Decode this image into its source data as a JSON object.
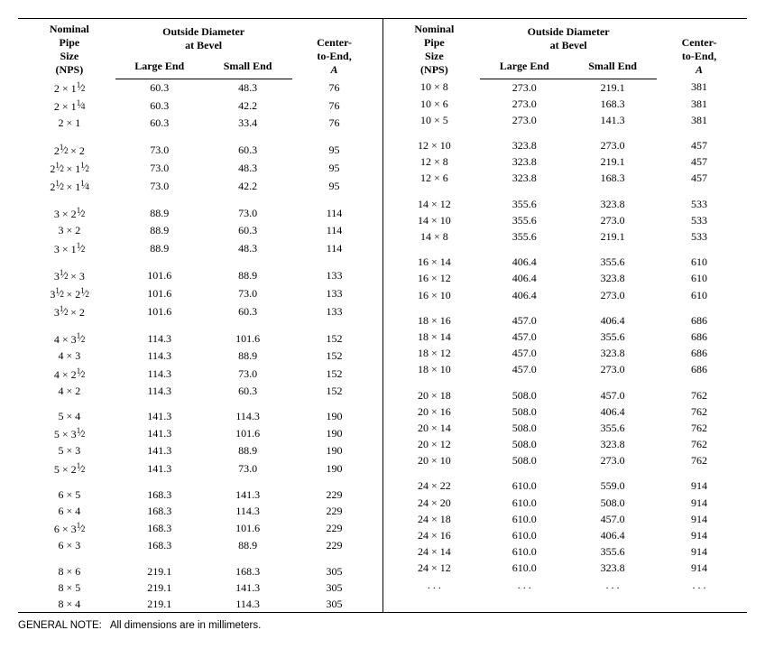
{
  "headers": {
    "nps_line1": "Nominal",
    "nps_line2": "Pipe",
    "nps_line3": "Size",
    "nps_line4": "(NPS)",
    "od_line1": "Outside Diameter",
    "od_line2": "at Bevel",
    "large_end": "Large End",
    "small_end": "Small End",
    "cte_line1": "Center-",
    "cte_line2": "to-End,",
    "cte_line3": "A"
  },
  "note_label": "GENERAL NOTE:",
  "note_text": "All dimensions are in millimeters.",
  "left_rows": [
    {
      "nps": "2 × 1½",
      "le": "60.3",
      "se": "48.3",
      "a": "76"
    },
    {
      "nps": "2 × 1¼",
      "le": "60.3",
      "se": "42.2",
      "a": "76"
    },
    {
      "nps": "2 × 1",
      "le": "60.3",
      "se": "33.4",
      "a": "76"
    },
    {
      "spacer": true
    },
    {
      "nps": "2½ × 2",
      "le": "73.0",
      "se": "60.3",
      "a": "95"
    },
    {
      "nps": "2½ × 1½",
      "le": "73.0",
      "se": "48.3",
      "a": "95"
    },
    {
      "nps": "2½ × 1¼",
      "le": "73.0",
      "se": "42.2",
      "a": "95"
    },
    {
      "spacer": true
    },
    {
      "nps": "3 × 2½",
      "le": "88.9",
      "se": "73.0",
      "a": "114"
    },
    {
      "nps": "3 × 2",
      "le": "88.9",
      "se": "60.3",
      "a": "114"
    },
    {
      "nps": "3 × 1½",
      "le": "88.9",
      "se": "48.3",
      "a": "114"
    },
    {
      "spacer": true
    },
    {
      "nps": "3½ × 3",
      "le": "101.6",
      "se": "88.9",
      "a": "133"
    },
    {
      "nps": "3½ × 2½",
      "le": "101.6",
      "se": "73.0",
      "a": "133"
    },
    {
      "nps": "3½ × 2",
      "le": "101.6",
      "se": "60.3",
      "a": "133"
    },
    {
      "spacer": true
    },
    {
      "nps": "4 × 3½",
      "le": "114.3",
      "se": "101.6",
      "a": "152"
    },
    {
      "nps": "4 × 3",
      "le": "114.3",
      "se": "88.9",
      "a": "152"
    },
    {
      "nps": "4 × 2½",
      "le": "114.3",
      "se": "73.0",
      "a": "152"
    },
    {
      "nps": "4 × 2",
      "le": "114.3",
      "se": "60.3",
      "a": "152"
    },
    {
      "spacer": true
    },
    {
      "nps": "5 × 4",
      "le": "141.3",
      "se": "114.3",
      "a": "190"
    },
    {
      "nps": "5 × 3½",
      "le": "141.3",
      "se": "101.6",
      "a": "190"
    },
    {
      "nps": "5 × 3",
      "le": "141.3",
      "se": "88.9",
      "a": "190"
    },
    {
      "nps": "5 × 2½",
      "le": "141.3",
      "se": "73.0",
      "a": "190"
    },
    {
      "spacer": true
    },
    {
      "nps": "6 × 5",
      "le": "168.3",
      "se": "141.3",
      "a": "229"
    },
    {
      "nps": "6 × 4",
      "le": "168.3",
      "se": "114.3",
      "a": "229"
    },
    {
      "nps": "6 × 3½",
      "le": "168.3",
      "se": "101.6",
      "a": "229"
    },
    {
      "nps": "6 × 3",
      "le": "168.3",
      "se": "88.9",
      "a": "229"
    },
    {
      "spacer": true
    },
    {
      "nps": "8 × 6",
      "le": "219.1",
      "se": "168.3",
      "a": "305"
    },
    {
      "nps": "8 × 5",
      "le": "219.1",
      "se": "141.3",
      "a": "305"
    },
    {
      "nps": "8 × 4",
      "le": "219.1",
      "se": "114.3",
      "a": "305"
    }
  ],
  "right_rows": [
    {
      "nps": "10 × 8",
      "le": "273.0",
      "se": "219.1",
      "a": "381"
    },
    {
      "nps": "10 × 6",
      "le": "273.0",
      "se": "168.3",
      "a": "381"
    },
    {
      "nps": "10 × 5",
      "le": "273.0",
      "se": "141.3",
      "a": "381"
    },
    {
      "spacer": true
    },
    {
      "nps": "12 × 10",
      "le": "323.8",
      "se": "273.0",
      "a": "457"
    },
    {
      "nps": "12 × 8",
      "le": "323.8",
      "se": "219.1",
      "a": "457"
    },
    {
      "nps": "12 × 6",
      "le": "323.8",
      "se": "168.3",
      "a": "457"
    },
    {
      "spacer": true
    },
    {
      "nps": "14 × 12",
      "le": "355.6",
      "se": "323.8",
      "a": "533"
    },
    {
      "nps": "14 × 10",
      "le": "355.6",
      "se": "273.0",
      "a": "533"
    },
    {
      "nps": "14 × 8",
      "le": "355.6",
      "se": "219.1",
      "a": "533"
    },
    {
      "spacer": true
    },
    {
      "nps": "16 × 14",
      "le": "406.4",
      "se": "355.6",
      "a": "610"
    },
    {
      "nps": "16 × 12",
      "le": "406.4",
      "se": "323.8",
      "a": "610"
    },
    {
      "nps": "16 × 10",
      "le": "406.4",
      "se": "273.0",
      "a": "610"
    },
    {
      "spacer": true
    },
    {
      "nps": "18 × 16",
      "le": "457.0",
      "se": "406.4",
      "a": "686"
    },
    {
      "nps": "18 × 14",
      "le": "457.0",
      "se": "355.6",
      "a": "686"
    },
    {
      "nps": "18 × 12",
      "le": "457.0",
      "se": "323.8",
      "a": "686"
    },
    {
      "nps": "18 × 10",
      "le": "457.0",
      "se": "273.0",
      "a": "686"
    },
    {
      "spacer": true
    },
    {
      "nps": "20 × 18",
      "le": "508.0",
      "se": "457.0",
      "a": "762"
    },
    {
      "nps": "20 × 16",
      "le": "508.0",
      "se": "406.4",
      "a": "762"
    },
    {
      "nps": "20 × 14",
      "le": "508.0",
      "se": "355.6",
      "a": "762"
    },
    {
      "nps": "20 × 12",
      "le": "508.0",
      "se": "323.8",
      "a": "762"
    },
    {
      "nps": "20 × 10",
      "le": "508.0",
      "se": "273.0",
      "a": "762"
    },
    {
      "spacer": true
    },
    {
      "nps": "24 × 22",
      "le": "610.0",
      "se": "559.0",
      "a": "914"
    },
    {
      "nps": "24 × 20",
      "le": "610.0",
      "se": "508.0",
      "a": "914"
    },
    {
      "nps": "24 × 18",
      "le": "610.0",
      "se": "457.0",
      "a": "914"
    },
    {
      "nps": "24 × 16",
      "le": "610.0",
      "se": "406.4",
      "a": "914"
    },
    {
      "nps": "24 × 14",
      "le": "610.0",
      "se": "355.6",
      "a": "914"
    },
    {
      "nps": "24 × 12",
      "le": "610.0",
      "se": "323.8",
      "a": "914"
    },
    {
      "nps": ". . .",
      "le": ". . .",
      "se": ". . .",
      "a": ". . ."
    }
  ]
}
